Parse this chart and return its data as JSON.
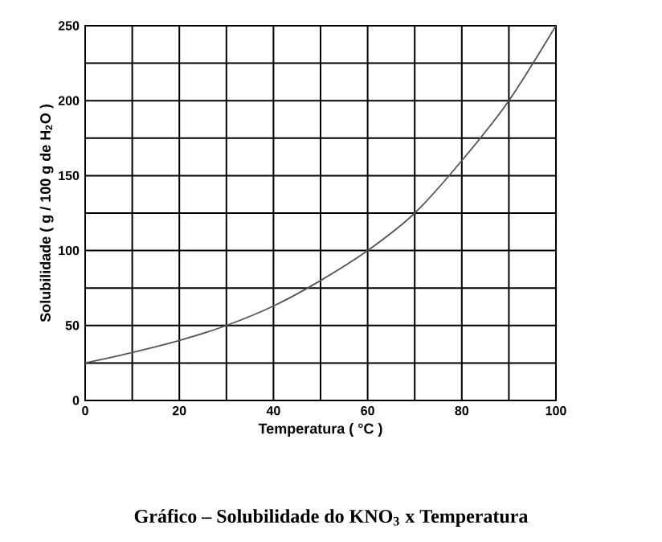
{
  "chart_data": {
    "type": "line",
    "title": "**Gráfico – Solubilidade do KNO$_{3}$ x Temperatura**",
    "xlabel": "Temperatura ( °C )",
    "ylabel": "Solubilidade ( g / 100 g de H$_{2}$O )",
    "x": [
      0,
      10,
      20,
      30,
      40,
      50,
      60,
      70,
      80,
      90,
      100
    ],
    "values": [
      25,
      32,
      40,
      50,
      63,
      80,
      100,
      125,
      160,
      200,
      250
    ],
    "color": "#555555",
    "xlim": [
      0,
      100
    ],
    "ylim": [
      0,
      250
    ],
    "xticks": [
      0,
      {
        "value": 10,
        "label": null
      },
      20,
      {
        "value": 30,
        "label": null
      },
      40,
      {
        "value": 50,
        "label": null
      },
      60,
      {
        "value": 70,
        "label": null
      },
      80,
      {
        "value": 90,
        "label": null
      },
      100
    ],
    "yticks": [
      0,
      {
        "value": 25,
        "label": null
      },
      50,
      {
        "value": 75,
        "label": null
      },
      100,
      {
        "value": 125,
        "label": null
      },
      150,
      {
        "value": 175,
        "label": null
      },
      200,
      {
        "value": 225,
        "label": null
      },
      250
    ],
    "grid": true,
    "marker": "none",
    "line_style": "solid"
  }
}
